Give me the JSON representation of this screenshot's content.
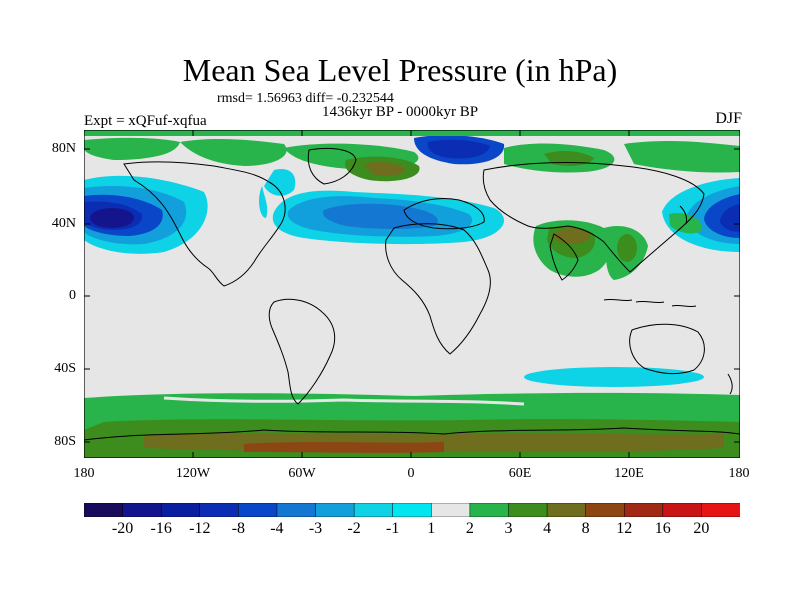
{
  "header": {
    "title": "Mean Sea Level Pressure (in hPa)",
    "stats": "rmsd= 1.56963  diff= -0.232544",
    "period": "1436kyr BP - 0000kyr BP",
    "experiment": "Expt = xQFuf-xqfua",
    "season": "DJF"
  },
  "axes": {
    "y_labels": [
      "80N",
      "40N",
      "0",
      "40S",
      "80S"
    ],
    "x_labels": [
      "180",
      "120W",
      "60W",
      "0",
      "60E",
      "120E",
      "180"
    ]
  },
  "legend": {
    "levels": [
      "-20",
      "-16",
      "-12",
      "-8",
      "-4",
      "-3",
      "-2",
      "-1",
      "1",
      "2",
      "3",
      "4",
      "8",
      "12",
      "16",
      "20"
    ],
    "colors": [
      "#1a0a5c",
      "#14148c",
      "#0a1ea0",
      "#0a2db4",
      "#0a46c8",
      "#1478d2",
      "#12a0dc",
      "#0ed2e6",
      "#00e6f0",
      "#e6e6e6",
      "#28b44b",
      "#3c8c1e",
      "#6e6e1e",
      "#8c4614",
      "#a02814",
      "#c81414",
      "#e61414"
    ]
  },
  "map": {
    "background_color": "#e6e6e6",
    "regions": [
      {
        "name": "north-pacific-low",
        "level": "-16 to -4",
        "color": "#0a2db4"
      },
      {
        "name": "north-atlantic-low",
        "level": "-4 to -2",
        "color": "#1478d2"
      },
      {
        "name": "asia-high",
        "level": "2 to 4",
        "color": "#3c8c1e"
      },
      {
        "name": "southern-ocean-high",
        "level": "2 to 4",
        "color": "#28b44b"
      },
      {
        "name": "south-indian-low",
        "level": "-1 to -2",
        "color": "#0ed2e6"
      }
    ]
  }
}
